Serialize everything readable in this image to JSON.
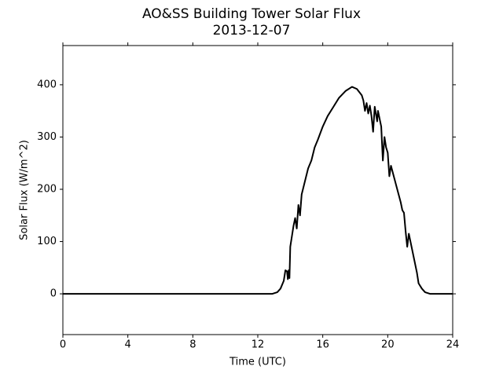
{
  "chart_data": {
    "type": "line",
    "title": "AO&SS Building Tower Solar Flux",
    "subtitle": "2013-12-07",
    "x_label": "Time (UTC)",
    "y_label": "Solar Flux (W/m^2)",
    "x": [
      0,
      12.9,
      13.2,
      13.4,
      13.6,
      13.7,
      13.8,
      13.85,
      13.9,
      13.95,
      14.0,
      14.1,
      14.2,
      14.3,
      14.4,
      14.5,
      14.6,
      14.7,
      14.9,
      15.1,
      15.3,
      15.5,
      15.7,
      16.0,
      16.3,
      16.6,
      17.0,
      17.4,
      17.8,
      18.1,
      18.4,
      18.5,
      18.6,
      18.7,
      18.8,
      18.9,
      19.0,
      19.1,
      19.2,
      19.35,
      19.4,
      19.6,
      19.7,
      19.8,
      19.9,
      20.0,
      20.1,
      20.2,
      20.5,
      20.8,
      20.9,
      21.0,
      21.1,
      21.2,
      21.3,
      21.4,
      21.6,
      21.8,
      21.9,
      22.1,
      22.3,
      22.6,
      24
    ],
    "series": [
      {
        "color": "#000000",
        "values": [
          0,
          0,
          3,
          10,
          25,
          45,
          43,
          28,
          45,
          30,
          90,
          110,
          130,
          145,
          125,
          170,
          150,
          190,
          215,
          240,
          255,
          280,
          295,
          320,
          340,
          355,
          375,
          388,
          396,
          392,
          380,
          370,
          350,
          365,
          345,
          360,
          340,
          310,
          358,
          330,
          350,
          320,
          255,
          300,
          280,
          270,
          225,
          245,
          210,
          175,
          160,
          155,
          120,
          90,
          115,
          100,
          70,
          40,
          20,
          10,
          3,
          0,
          0
        ]
      }
    ],
    "xlim": [
      0,
      24
    ],
    "xticks": [
      0,
      4,
      8,
      12,
      16,
      20,
      24
    ],
    "ylim": [
      -78,
      475
    ],
    "yticks": [
      0,
      100,
      200,
      300,
      400
    ],
    "grid": false
  }
}
